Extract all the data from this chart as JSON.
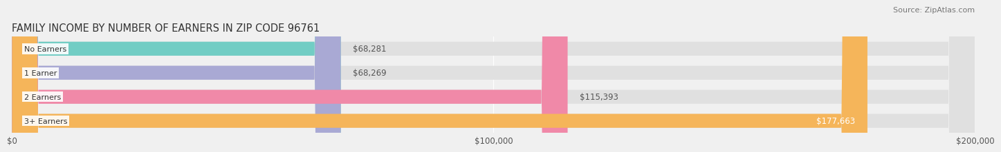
{
  "title": "FAMILY INCOME BY NUMBER OF EARNERS IN ZIP CODE 96761",
  "source": "Source: ZipAtlas.com",
  "categories": [
    "No Earners",
    "1 Earner",
    "2 Earners",
    "3+ Earners"
  ],
  "values": [
    68281,
    68269,
    115393,
    177663
  ],
  "bar_colors": [
    "#72cdc4",
    "#a9a9d4",
    "#f089a8",
    "#f5b55a"
  ],
  "label_colors": [
    "#555555",
    "#555555",
    "#555555",
    "#ffffff"
  ],
  "bar_height": 0.58,
  "xlim": [
    0,
    200000
  ],
  "xticks": [
    0,
    100000,
    200000
  ],
  "xtick_labels": [
    "$0",
    "$100,000",
    "$200,000"
  ],
  "background_color": "#f0f0f0",
  "bar_background_color": "#e0e0e0",
  "title_fontsize": 10.5,
  "source_fontsize": 8,
  "label_fontsize": 8.5,
  "tick_fontsize": 8.5,
  "category_fontsize": 8
}
